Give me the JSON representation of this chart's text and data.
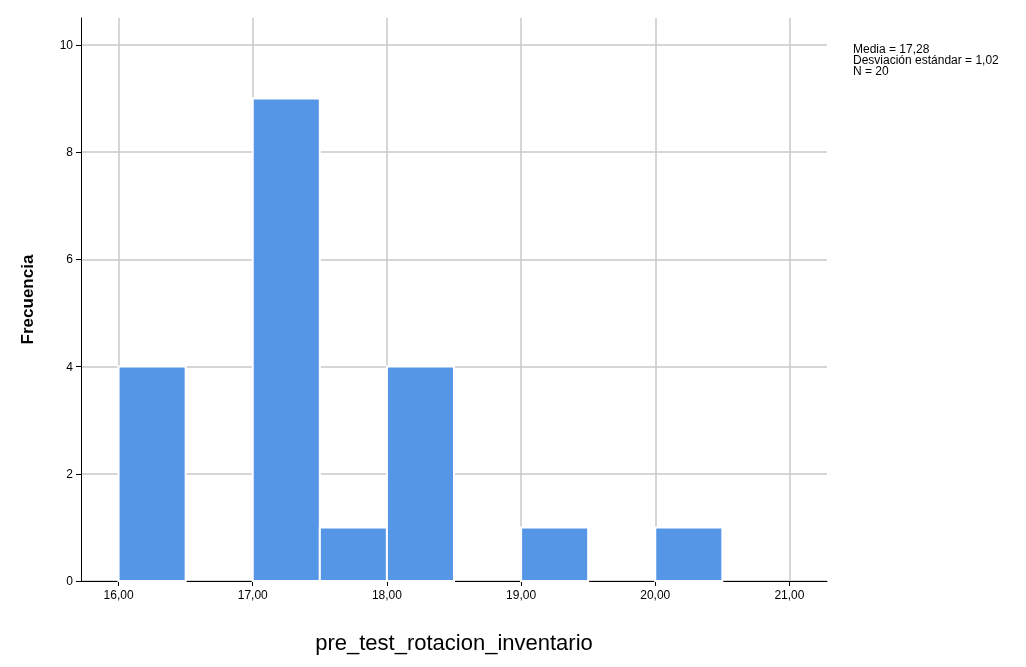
{
  "chart_data": {
    "type": "histogram",
    "xlabel": "pre_test_rotacion_inventario",
    "ylabel": "Frecuencia",
    "bins": [
      16,
      16.5,
      17,
      17.5,
      18,
      18.5,
      19,
      19.5,
      20,
      20.5,
      21
    ],
    "values": [
      4,
      0,
      9,
      1,
      4,
      0,
      1,
      0,
      1,
      0
    ],
    "color": "#5596e6",
    "xlim": [
      15.72,
      21.28
    ],
    "xticks": [
      {
        "value": 16,
        "label": "16,00"
      },
      {
        "value": 17,
        "label": "17,00"
      },
      {
        "value": 18,
        "label": "18,00"
      },
      {
        "value": 19,
        "label": "19,00"
      },
      {
        "value": 20,
        "label": "20,00"
      },
      {
        "value": 21,
        "label": "21,00"
      }
    ],
    "ylim": [
      0,
      10.5
    ],
    "yticks": [
      0,
      2,
      4,
      6,
      8,
      10
    ],
    "grid": true,
    "annotations": [
      "Media = 17,28\nDesviación estándar = 1,02\nN = 20"
    ]
  }
}
